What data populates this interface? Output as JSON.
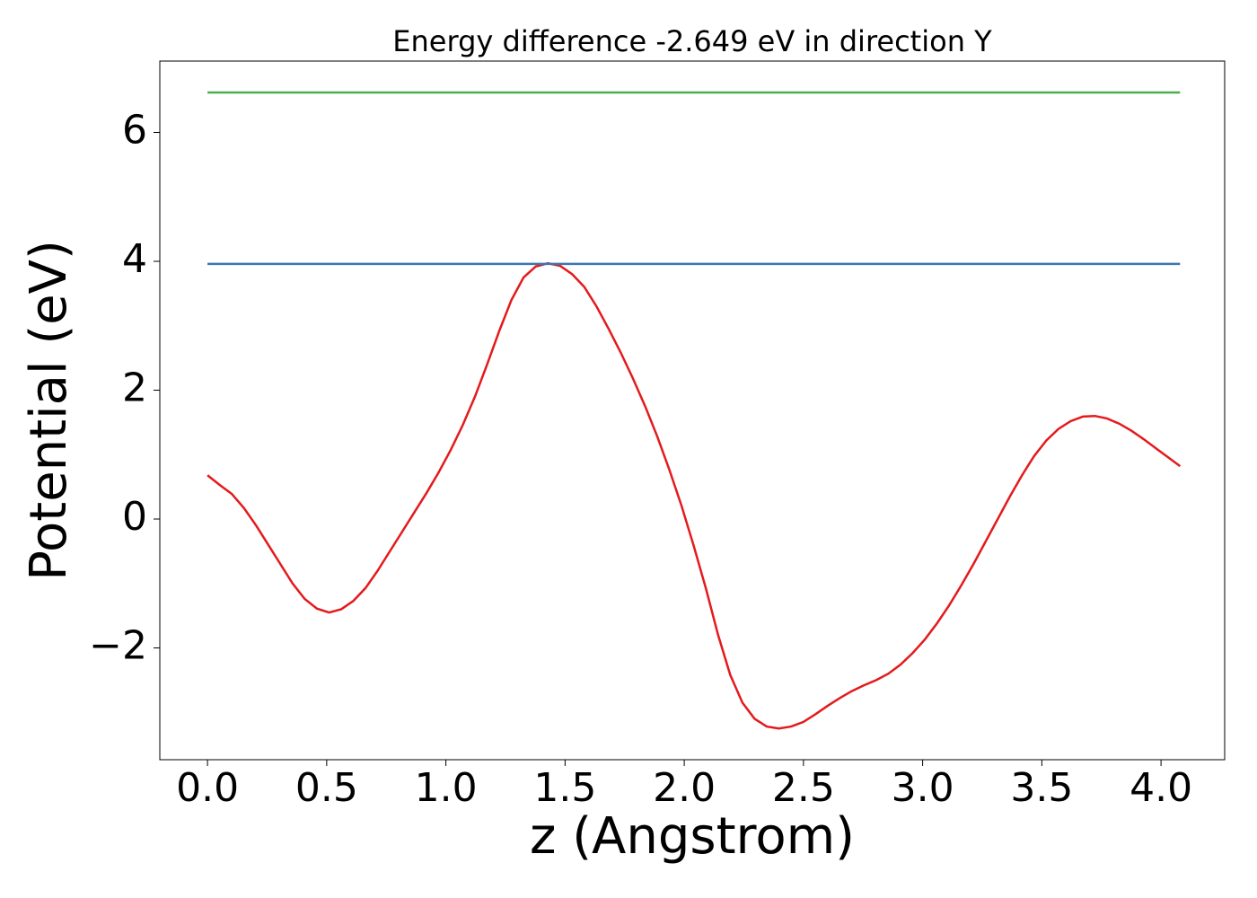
{
  "chart_data": {
    "type": "line",
    "title": "Energy difference -2.649 eV in direction Y",
    "x_label": "z (Angstrom)",
    "y_label": "Potential (eV)",
    "xlim": [
      -0.2,
      4.267
    ],
    "ylim": [
      -3.735,
      7.108
    ],
    "xticks": [
      {
        "value": 0,
        "label": "0.0"
      },
      0.5,
      {
        "value": 1,
        "label": "1.0"
      },
      1.5,
      {
        "value": 2,
        "label": "2.0"
      },
      2.5,
      {
        "value": 3,
        "label": "3.0"
      },
      3.5,
      {
        "value": 4,
        "label": "4.0"
      }
    ],
    "yticks": [
      {
        "value": -2,
        "label": "−2"
      },
      0,
      2,
      4,
      6
    ],
    "grid": false,
    "series": [
      {
        "color": "#e41a1c",
        "x": [
          0,
          0.051,
          0.102,
          0.153,
          0.204,
          0.255,
          0.306,
          0.357,
          0.408,
          0.459,
          0.51,
          0.561,
          0.612,
          0.663,
          0.714,
          0.765,
          0.816,
          0.867,
          0.918,
          0.969,
          1.02,
          1.071,
          1.122,
          1.173,
          1.224,
          1.275,
          1.326,
          1.377,
          1.428,
          1.479,
          1.53,
          1.581,
          1.632,
          1.683,
          1.734,
          1.785,
          1.836,
          1.887,
          1.938,
          1.989,
          2.04,
          2.091,
          2.142,
          2.193,
          2.244,
          2.295,
          2.346,
          2.397,
          2.448,
          2.499,
          2.55,
          2.601,
          2.652,
          2.703,
          2.754,
          2.805,
          2.856,
          2.907,
          2.958,
          3.009,
          3.06,
          3.111,
          3.162,
          3.213,
          3.264,
          3.315,
          3.366,
          3.417,
          3.468,
          3.519,
          3.57,
          3.621,
          3.672,
          3.723,
          3.774,
          3.825,
          3.876,
          3.927,
          3.978,
          4.029,
          4.08
        ],
        "values": [
          0.68,
          0.53,
          0.39,
          0.17,
          -0.1,
          -0.4,
          -0.7,
          -1.0,
          -1.24,
          -1.39,
          -1.45,
          -1.4,
          -1.27,
          -1.07,
          -0.8,
          -0.5,
          -0.2,
          0.1,
          0.4,
          0.72,
          1.07,
          1.46,
          1.9,
          2.4,
          2.92,
          3.4,
          3.75,
          3.92,
          3.97,
          3.93,
          3.8,
          3.6,
          3.3,
          2.95,
          2.58,
          2.18,
          1.75,
          1.28,
          0.76,
          0.2,
          -0.42,
          -1.08,
          -1.8,
          -2.42,
          -2.85,
          -3.1,
          -3.22,
          -3.25,
          -3.22,
          -3.15,
          -3.03,
          -2.9,
          -2.78,
          -2.67,
          -2.58,
          -2.5,
          -2.4,
          -2.26,
          -2.08,
          -1.87,
          -1.62,
          -1.34,
          -1.03,
          -0.7,
          -0.35,
          0.0,
          0.35,
          0.68,
          0.98,
          1.22,
          1.4,
          1.52,
          1.59,
          1.6,
          1.56,
          1.48,
          1.37,
          1.24,
          1.1,
          0.96,
          0.82
        ]
      },
      {
        "color": "#3b75af",
        "x": [
          0,
          4.08
        ],
        "values": [
          3.96,
          3.96
        ]
      },
      {
        "color": "#4caf50",
        "x": [
          0,
          4.08
        ],
        "values": [
          6.62,
          6.62
        ]
      }
    ]
  }
}
